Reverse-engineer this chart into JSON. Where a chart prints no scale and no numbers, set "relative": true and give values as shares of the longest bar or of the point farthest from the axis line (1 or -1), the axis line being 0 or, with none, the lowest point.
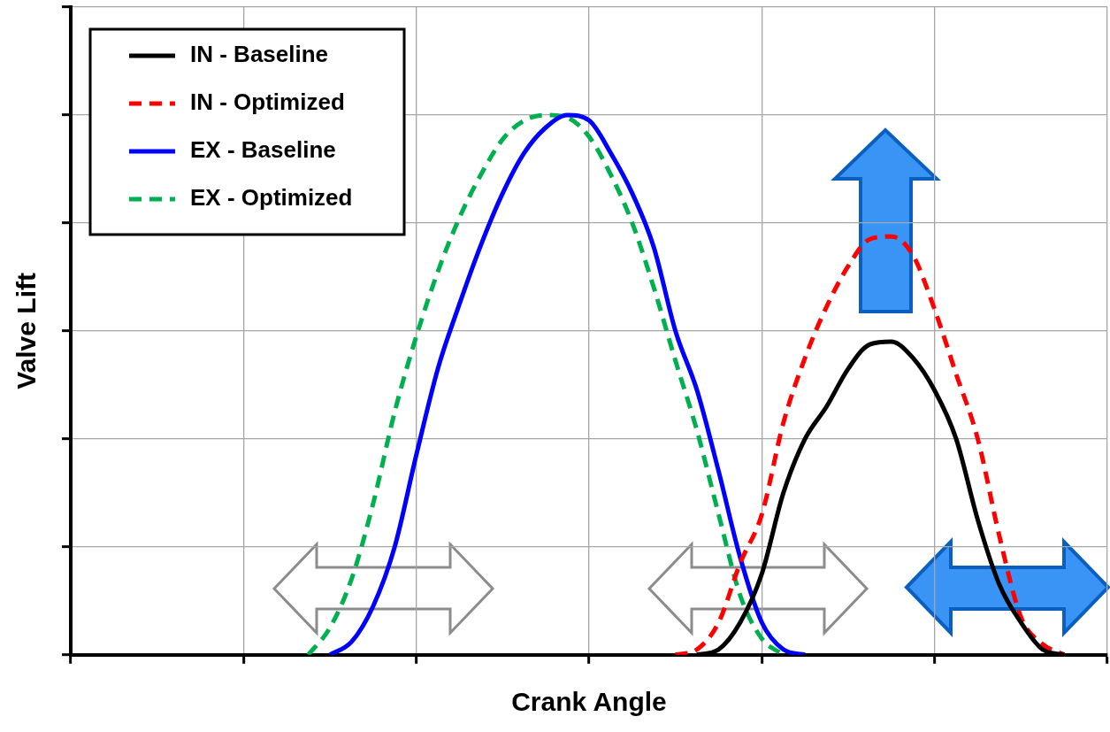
{
  "chart_data": {
    "type": "line",
    "xlabel": "Crank Angle",
    "ylabel": "Valve Lift",
    "relative": true,
    "grid": true,
    "legend": "top left",
    "categories": [
      null,
      null,
      null,
      null,
      null,
      null,
      null,
      null,
      null,
      null,
      null,
      null,
      null,
      null,
      null,
      null,
      null,
      null,
      null,
      null,
      null,
      null,
      null,
      null,
      null,
      null,
      null,
      null,
      null,
      null,
      null,
      null,
      null,
      null,
      null,
      null,
      null,
      null,
      null,
      null,
      null,
      null,
      null,
      null,
      null,
      null,
      null,
      null,
      null
    ],
    "series": [
      {
        "name": "IN - Baseline",
        "color": "#000000",
        "line_style": "solid",
        "values": [
          null,
          null,
          null,
          null,
          null,
          null,
          null,
          null,
          null,
          null,
          null,
          null,
          null,
          null,
          null,
          null,
          null,
          null,
          null,
          null,
          null,
          null,
          null,
          null,
          null,
          null,
          null,
          null,
          null,
          0,
          0.01,
          0.06,
          0.15,
          0.3,
          0.4,
          0.46,
          0.53,
          0.575,
          0.58,
          0.55,
          0.49,
          0.4,
          0.25,
          0.13,
          0.06,
          0.01,
          0,
          null,
          null
        ]
      },
      {
        "name": "IN - Optimized",
        "color": "#ff0000",
        "line_style": "dashed",
        "values": [
          null,
          null,
          null,
          null,
          null,
          null,
          null,
          null,
          null,
          null,
          null,
          null,
          null,
          null,
          null,
          null,
          null,
          null,
          null,
          null,
          null,
          null,
          null,
          null,
          null,
          null,
          null,
          null,
          0,
          0.01,
          0.06,
          0.17,
          0.26,
          0.43,
          0.55,
          0.645,
          0.72,
          0.77,
          0.775,
          0.74,
          0.64,
          0.52,
          0.4,
          0.22,
          0.07,
          0.02,
          0,
          null,
          null
        ]
      },
      {
        "name": "EX - Baseline",
        "color": "#0000ff",
        "line_style": "solid",
        "values": [
          null,
          null,
          null,
          null,
          null,
          null,
          null,
          null,
          null,
          null,
          null,
          null,
          0,
          0.024,
          0.09,
          0.2,
          0.37,
          0.53,
          0.65,
          0.76,
          0.855,
          0.93,
          0.977,
          1,
          0.99,
          0.93,
          0.855,
          0.755,
          0.6,
          0.49,
          0.34,
          0.18,
          0.06,
          0.01,
          0,
          null,
          null,
          null,
          null,
          null,
          null,
          null,
          null,
          null,
          null,
          null,
          null,
          null,
          null
        ]
      },
      {
        "name": "EX - Optimized",
        "color": "#00b050",
        "line_style": "dashed",
        "values": [
          null,
          null,
          null,
          null,
          null,
          null,
          null,
          null,
          null,
          null,
          null,
          0,
          0.05,
          0.14,
          0.28,
          0.45,
          0.59,
          0.71,
          0.81,
          0.89,
          0.955,
          0.99,
          1,
          0.995,
          0.96,
          0.89,
          0.8,
          0.68,
          0.545,
          0.415,
          0.26,
          0.11,
          0.03,
          0,
          null,
          null,
          null,
          null,
          null,
          null,
          null,
          null,
          null,
          null,
          null,
          null,
          null,
          null,
          null
        ]
      }
    ]
  }
}
